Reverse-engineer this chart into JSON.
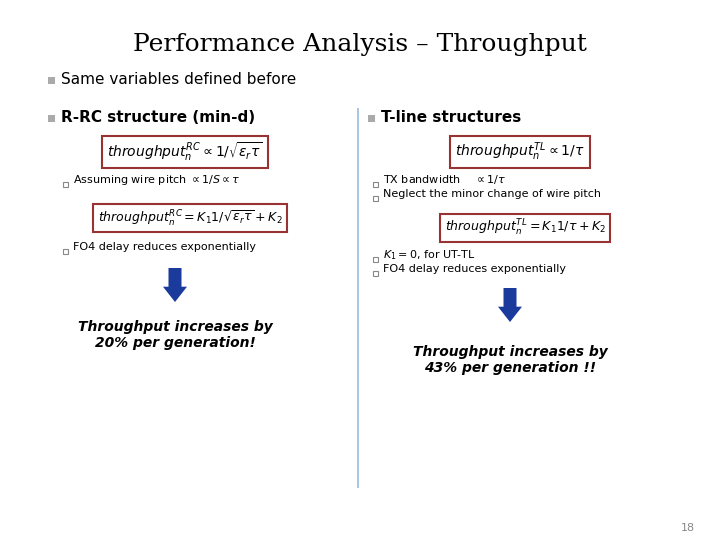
{
  "title": "Performance Analysis – Throughput",
  "title_fontsize": 18,
  "bg_color": "#ffffff",
  "bullet_color": "#aaaaaa",
  "bullet1": "Same variables defined before",
  "bullet1_fontsize": 11,
  "col1_header": "R-RC structure (min-d)",
  "col2_header": "T-line structures",
  "header_fontsize": 11,
  "box_edge_color": "#993333",
  "box_face_color": "#ffffff",
  "formula1a": "$throughput_n^{RC} \\propto 1/\\sqrt{\\epsilon_r \\tau}$",
  "formula1b": "$throughput_n^{RC} = K_1 1/\\sqrt{\\epsilon_r \\tau} + K_2$",
  "formula2a": "$throughput_n^{TL} \\propto 1/\\tau$",
  "formula2b": "$throughput_n^{TL} = K_1 1/\\tau + K_2$",
  "sub1a": "Assuming wire pitch $\\propto 1/S \\propto \\tau$",
  "sub2a1": "TX bandwidth $\\quad \\propto 1/\\tau$",
  "sub2a2": "Neglect the minor change of wire pitch",
  "sub1b": "FO4 delay reduces exponentially",
  "sub2b1": "$K_1 = 0$, for UT-TL",
  "sub2b2": "FO4 delay reduces exponentially",
  "sub_fontsize": 8,
  "conclusion1": "Throughput increases by\n20% per generation!",
  "conclusion2": "Throughput increases by\n43% per generation !!",
  "conclusion_fontsize": 10,
  "arrow_color": "#1a3a9c",
  "divider_color": "#99bbdd",
  "page_num": "18",
  "square_bullet_color": "#888888",
  "formula_fontsize": 10,
  "formula2_fontsize": 9
}
